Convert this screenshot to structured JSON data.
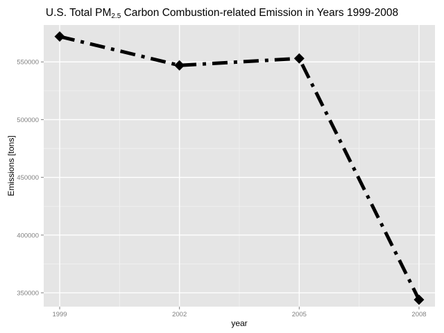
{
  "chart_data": {
    "type": "line",
    "title": {
      "prefix": "U.S. Total PM",
      "subscript": "2.5",
      "suffix": " Carbon Combustion-related Emission in Years 1999-2008"
    },
    "xlabel": "year",
    "ylabel": "Emissions [tons]",
    "x": [
      1999,
      2002,
      2005,
      2008
    ],
    "series": [
      {
        "values": [
          572000,
          547000,
          553000,
          344000
        ]
      }
    ],
    "xlim": [
      1998.6,
      2008.4
    ],
    "ylim": [
      338000,
      582000
    ],
    "x_ticks": [
      1999,
      2002,
      2005,
      2008
    ],
    "x_tick_labels": [
      "1999",
      "2002",
      "2005",
      "2008"
    ],
    "y_ticks": [
      350000,
      400000,
      450000,
      500000,
      550000
    ],
    "y_tick_labels": [
      "350000",
      "400000",
      "450000",
      "500000",
      "550000"
    ],
    "grid": true,
    "line_style": "dashdot",
    "marker": "diamond",
    "colors": {
      "panel": "#e5e5e5",
      "grid_major": "#ffffff",
      "grid_minor": "#f2f2f2",
      "line": "#000000",
      "tick_text": "#7f7f7f"
    }
  }
}
